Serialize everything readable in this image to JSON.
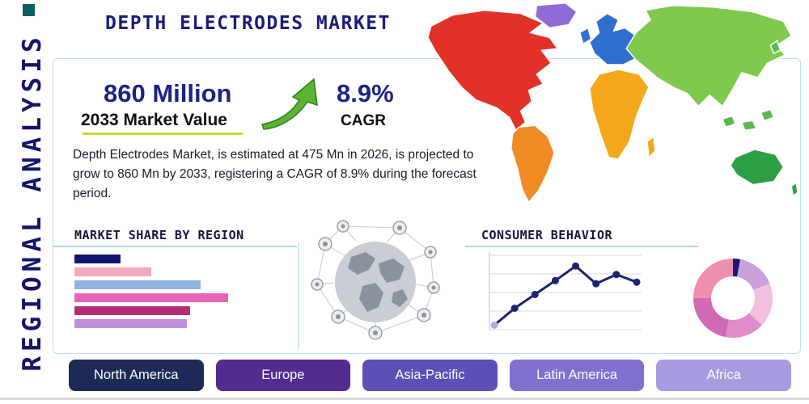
{
  "header": {
    "title": "DEPTH ELECTRODES MARKET"
  },
  "sidebar": {
    "label": "REGIONAL ANALYSIS"
  },
  "stats": {
    "market_value": "860 Million",
    "market_value_label": "2033 Market Value",
    "cagr_value": "8.9%",
    "cagr_label": "CAGR"
  },
  "description": "Depth Electrodes Market, is estimated at 475 Mn in 2026, is projected to grow to 860 Mn by 2033, registering a CAGR of 8.9% during the forecast period.",
  "chart_data": [
    {
      "type": "bar",
      "title": "MARKET SHARE BY REGION",
      "orientation": "horizontal",
      "values": [
        30,
        50,
        82,
        100,
        75,
        73
      ],
      "colors": [
        "#14146e",
        "#f4a7c3",
        "#8fb4e3",
        "#e964b8",
        "#b52d73",
        "#bf8fd7"
      ],
      "xlim": [
        0,
        100
      ],
      "note": "bars unlabeled in figure; values are relative lengths"
    },
    {
      "type": "line",
      "title": "CONSUMER BEHAVIOR",
      "values": [
        8,
        30,
        48,
        66,
        85,
        62,
        74,
        64
      ],
      "line_color": "#1c2470",
      "point_color": "#1c2470",
      "first_point_color": "#b9a7e6",
      "grid": true
    },
    {
      "type": "pie",
      "donut": true,
      "values": [
        3,
        16,
        18,
        16,
        22,
        25
      ],
      "colors": [
        "#1a1a6e",
        "#c9a0dc",
        "#f2bfdd",
        "#e08cc8",
        "#d06ab4",
        "#ef8faf"
      ]
    }
  ],
  "regions": [
    {
      "label": "North America",
      "color": "#1e2a56"
    },
    {
      "label": "Europe",
      "color": "#542b8f"
    },
    {
      "label": "Asia-Pacific",
      "color": "#5a50b5"
    },
    {
      "label": "Latin America",
      "color": "#7f72cf"
    },
    {
      "label": "Africa",
      "color": "#a89ce0"
    }
  ],
  "map_colors": {
    "north_america": "#e23128",
    "greenland": "#8f6bd8",
    "south_america": "#f08a24",
    "europe": "#2f6fd0",
    "uk": "#2f6fd0",
    "africa": "#f5a81c",
    "madagascar": "#f5a81c",
    "asia": "#7fc94f",
    "islands": "#5cb84e",
    "australia": "#2e9e44",
    "new_zealand": "#2e9e44"
  },
  "accent": {
    "arrow_green": "#5cb431",
    "panel_border": "#b9e2ef",
    "underline_yellow": "#cdd82a"
  }
}
